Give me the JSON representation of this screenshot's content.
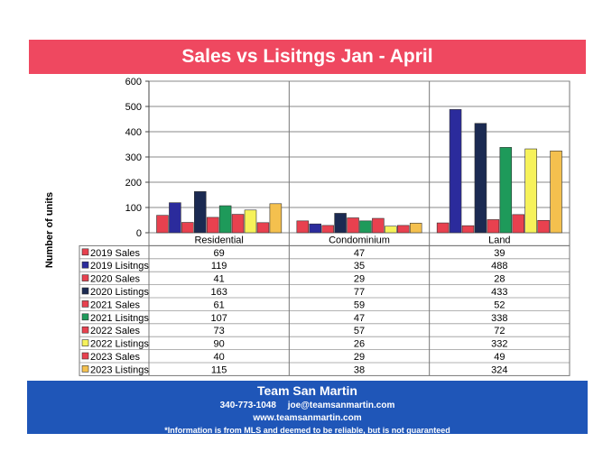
{
  "header": {
    "title": "Sales vs Lisitngs Jan - April"
  },
  "chart_data": {
    "type": "bar",
    "title": "Sales vs Lisitngs Jan - April",
    "ylabel": "Number of units",
    "xlabel": "",
    "ylim": [
      0,
      600
    ],
    "yticks": [
      "0",
      "100",
      "200",
      "300",
      "400",
      "500",
      "600"
    ],
    "grid": true,
    "legend": "data table",
    "categories": [
      "Residential",
      "Condominium",
      "Land"
    ],
    "series": [
      {
        "name": "2019 Sales",
        "values": [
          69,
          47,
          39
        ],
        "color": "#e8414f"
      },
      {
        "name": "2019 Lisitngs",
        "values": [
          119,
          35,
          488
        ],
        "color": "#2b2b9c"
      },
      {
        "name": "2020 Sales",
        "values": [
          41,
          29,
          28
        ],
        "color": "#e8414f"
      },
      {
        "name": "2020 Listings",
        "values": [
          163,
          77,
          433
        ],
        "color": "#1b2a52"
      },
      {
        "name": "2021 Sales",
        "values": [
          61,
          59,
          52
        ],
        "color": "#e8414f"
      },
      {
        "name": "2021 Lisitngs",
        "values": [
          107,
          47,
          338
        ],
        "color": "#1e9a5a"
      },
      {
        "name": "2022 Sales",
        "values": [
          73,
          57,
          72
        ],
        "color": "#e8414f"
      },
      {
        "name": "2022 Listings",
        "values": [
          90,
          26,
          332
        ],
        "color": "#f6f25a"
      },
      {
        "name": "2023 Sales",
        "values": [
          40,
          29,
          49
        ],
        "color": "#e8414f"
      },
      {
        "name": "2023 Listings",
        "values": [
          115,
          38,
          324
        ],
        "color": "#f4c04e"
      }
    ]
  },
  "footer": {
    "org": "Team San Martin",
    "phone": "340-773-1048",
    "email": "joe@teamsanmartin.com",
    "website": "www.teamsanmartin.com",
    "disclaimer": "*Information is from MLS and deemed to be reliable, but is not guaranteed"
  }
}
